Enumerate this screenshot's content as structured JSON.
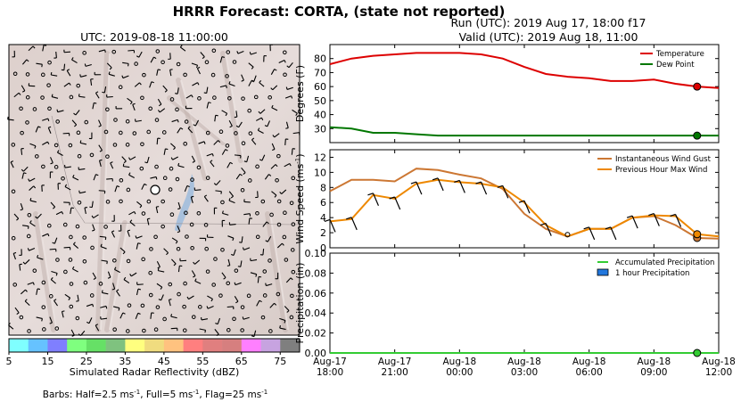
{
  "title": "HRRR Forecast: CORTA, (state not reported)",
  "run_line": "Run (UTC): 2019 Aug 17, 18:00 f17",
  "valid_line": "Valid (UTC): 2019 Aug 18, 11:00",
  "map": {
    "title": "UTC: 2019-08-18 11:00:00",
    "colorbar_label": "Simulated Radar Reflectivity (dBZ)",
    "colorbar_ticks": [
      "5",
      "15",
      "25",
      "35",
      "45",
      "55",
      "65",
      "75"
    ],
    "colorbar_colors": [
      "#7fffff",
      "#66c2ff",
      "#7f7fff",
      "#7fff7f",
      "#66e066",
      "#7fc27f",
      "#ffff7f",
      "#f0dc7f",
      "#ffc27f",
      "#ff7f7f",
      "#e07f7f",
      "#d67f7f",
      "#ff7fff",
      "#c7a3e0",
      "#7f7f7f"
    ],
    "barbs_note_prefix": "Barbs: Half=2.5 ms",
    "barbs_note_sup1": "-1",
    "barbs_note_mid": ", Full=5 ms",
    "barbs_note_sup2": "-1",
    "barbs_note_mid2": ", Flag=25 ms",
    "barbs_note_sup3": "-1"
  },
  "chart_data": [
    {
      "type": "line",
      "ylabel": "Degrees (F)",
      "ylim": [
        20,
        90
      ],
      "yticks": [
        30,
        40,
        50,
        60,
        70,
        80
      ],
      "x": [
        0,
        1,
        2,
        3,
        4,
        5,
        6,
        7,
        8,
        9,
        10,
        11,
        12,
        13,
        14,
        15,
        16,
        17,
        18
      ],
      "legend_position": "top-right",
      "series": [
        {
          "name": "Temperature",
          "color": "#dd0000",
          "values": [
            76,
            80,
            82,
            83,
            84,
            84,
            84,
            83,
            80,
            74,
            69,
            67,
            66,
            64,
            64,
            65,
            62,
            60,
            59
          ]
        },
        {
          "name": "Dew Point",
          "color": "#007700",
          "values": [
            31,
            30,
            27,
            27,
            26,
            25,
            25,
            25,
            25,
            25,
            25,
            25,
            25,
            25,
            25,
            25,
            25,
            25,
            25
          ]
        }
      ],
      "marker_x": 17,
      "marker_values": [
        60,
        25
      ]
    },
    {
      "type": "line",
      "ylabel": "Wind Speed (ms",
      "ylabel_sup": "-1",
      "ylabel_end": ")",
      "ylim": [
        0,
        13
      ],
      "yticks": [
        0,
        2,
        4,
        6,
        8,
        10,
        12
      ],
      "x": [
        0,
        1,
        2,
        3,
        4,
        5,
        6,
        7,
        8,
        9,
        10,
        11,
        12,
        13,
        14,
        15,
        16,
        17,
        18
      ],
      "legend_position": "top-right",
      "series": [
        {
          "name": "Instantaneous Wind Gust",
          "color": "#cc7733",
          "values": [
            7.5,
            9,
            9,
            8.8,
            10.5,
            10.3,
            9.7,
            9.2,
            7.8,
            4.5,
            2.5,
            1.5,
            2.5,
            2.5,
            4,
            4.2,
            3,
            1.3,
            1.2
          ]
        },
        {
          "name": "Previous Hour Max Wind",
          "color": "#ee8800",
          "values": [
            3.5,
            3.8,
            7,
            6.5,
            8.5,
            9,
            8.7,
            8.5,
            8,
            6,
            3,
            1.5,
            2.5,
            2.5,
            4,
            4.3,
            4.2,
            1.8,
            1.5
          ]
        }
      ],
      "marker_x": 17,
      "marker_values": [
        1.3,
        1.8
      ]
    },
    {
      "type": "line",
      "ylabel": "Precipitation (in)",
      "ylim": [
        0,
        0.1
      ],
      "yticks": [
        "0.00",
        "0.02",
        "0.04",
        "0.06",
        "0.08",
        "0.10"
      ],
      "x": [
        0,
        1,
        2,
        3,
        4,
        5,
        6,
        7,
        8,
        9,
        10,
        11,
        12,
        13,
        14,
        15,
        16,
        17,
        18
      ],
      "x_tick_positions": [
        0,
        3,
        6,
        9,
        12,
        15,
        18
      ],
      "x_tick_labels": [
        [
          "Aug-17",
          "18:00"
        ],
        [
          "Aug-17",
          "21:00"
        ],
        [
          "Aug-18",
          "00:00"
        ],
        [
          "Aug-18",
          "03:00"
        ],
        [
          "Aug-18",
          "06:00"
        ],
        [
          "Aug-18",
          "09:00"
        ],
        [
          "Aug-18",
          "12:00"
        ]
      ],
      "legend_position": "top-right",
      "series": [
        {
          "name": "Accumulated Precipitation",
          "color": "#33cc33",
          "values": [
            0,
            0,
            0,
            0,
            0,
            0,
            0,
            0,
            0,
            0,
            0,
            0,
            0,
            0,
            0,
            0,
            0,
            0,
            0
          ]
        },
        {
          "name": "1 hour Precipitation",
          "color": "#2277dd",
          "kind": "bar",
          "values": [
            0,
            0,
            0,
            0,
            0,
            0,
            0,
            0,
            0,
            0,
            0,
            0,
            0,
            0,
            0,
            0,
            0,
            0,
            0
          ]
        }
      ],
      "marker_x": 17,
      "marker_values": [
        0
      ]
    }
  ]
}
